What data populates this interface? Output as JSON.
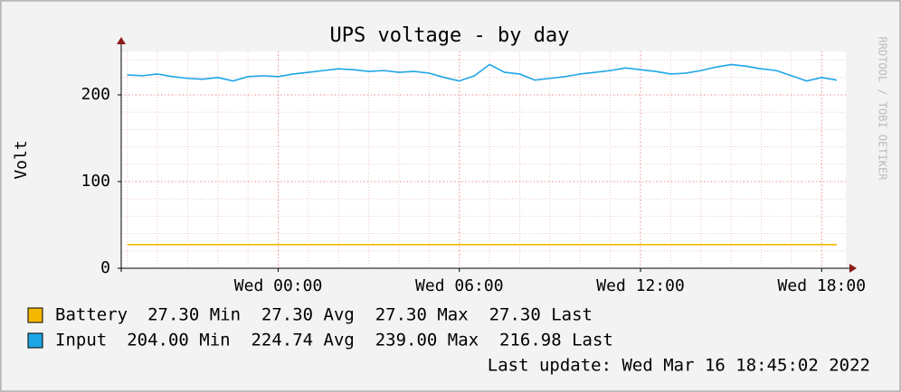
{
  "chart_data": {
    "type": "line",
    "title": "UPS voltage - by day",
    "y_label": "Volt",
    "side_text": "RRDTOOL / TOBI OETIKER",
    "footer": "Last update: Wed Mar 16 18:45:02 2022",
    "x": [
      -5,
      -4.5,
      -4,
      -3.5,
      -3,
      -2.5,
      -2,
      -1.5,
      -1,
      -0.5,
      0,
      0.5,
      1,
      1.5,
      2,
      2.5,
      3,
      3.5,
      4,
      4.5,
      5,
      5.5,
      6,
      6.5,
      7,
      7.5,
      8,
      8.5,
      9,
      9.5,
      10,
      10.5,
      11,
      11.5,
      12,
      12.5,
      13,
      13.5,
      14,
      14.5,
      15,
      15.5,
      16,
      16.5,
      17,
      17.5,
      18,
      18.5
    ],
    "xlim": [
      -5.2,
      18.8
    ],
    "xticks": [
      {
        "value": 0,
        "label": "Wed 00:00"
      },
      {
        "value": 6,
        "label": "Wed 06:00"
      },
      {
        "value": 12,
        "label": "Wed 12:00"
      },
      {
        "value": 18,
        "label": "Wed 18:00"
      }
    ],
    "ylim": [
      0,
      250
    ],
    "yticks": [
      0,
      100,
      200
    ],
    "grid": true,
    "series": [
      {
        "name": "Battery",
        "color": "#f5b800",
        "legend_stats": "27.30 Min  27.30 Avg  27.30 Max  27.30 Last",
        "values": [
          27.3,
          27.3,
          27.3,
          27.3,
          27.3,
          27.3,
          27.3,
          27.3,
          27.3,
          27.3,
          27.3,
          27.3,
          27.3,
          27.3,
          27.3,
          27.3,
          27.3,
          27.3,
          27.3,
          27.3,
          27.3,
          27.3,
          27.3,
          27.3,
          27.3,
          27.3,
          27.3,
          27.3,
          27.3,
          27.3,
          27.3,
          27.3,
          27.3,
          27.3,
          27.3,
          27.3,
          27.3,
          27.3,
          27.3,
          27.3,
          27.3,
          27.3,
          27.3,
          27.3,
          27.3,
          27.3,
          27.3,
          27.3
        ]
      },
      {
        "name": "Input",
        "color": "#1ea5e6",
        "legend_stats": "204.00 Min  224.74 Avg  239.00 Max  216.98 Last",
        "values": [
          223,
          222,
          224,
          221,
          219,
          218,
          220,
          216,
          221,
          222,
          221,
          224,
          226,
          228,
          230,
          229,
          227,
          228,
          226,
          227,
          225,
          220,
          216,
          222,
          235,
          226,
          224,
          217,
          219,
          221,
          224,
          226,
          228,
          231,
          229,
          227,
          224,
          225,
          228,
          232,
          235,
          233,
          230,
          228,
          222,
          216,
          220,
          217
        ]
      }
    ]
  }
}
